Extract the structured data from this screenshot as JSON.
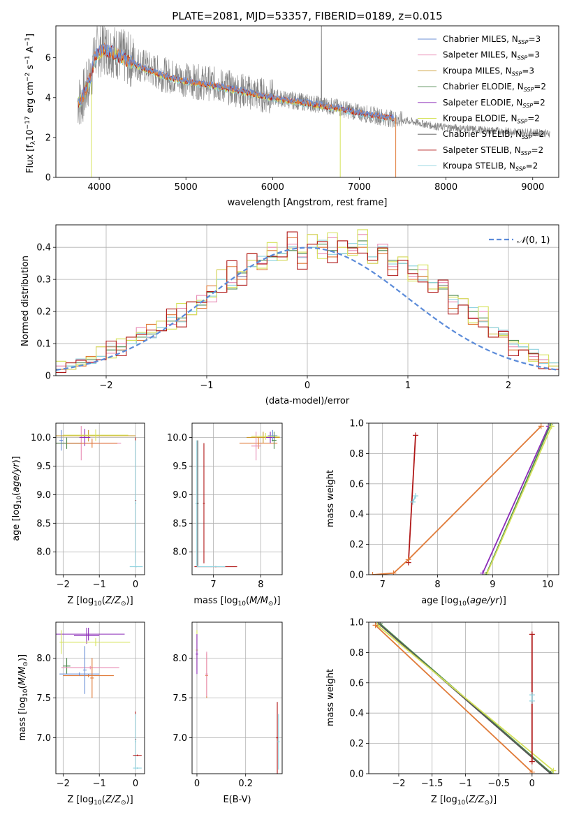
{
  "figure_title": "PLATE=2081, MJD=53357, FIBERID=0189, z=0.015",
  "colors": {
    "Chabrier MILES": "#6b8fd6",
    "Salpeter MILES": "#e88bb4",
    "Kroupa MILES": "#c9972a",
    "Chabrier ELODIE": "#4f8a4f",
    "Salpeter ELODIE": "#8b2bb8",
    "Kroupa ELODIE": "#d5e25a",
    "Chabrier STELIB": "#555555",
    "Salpeter STELIB": "#b01818",
    "Kroupa STELIB": "#8fd3df",
    "data": "#808080",
    "normal": "#5b8bd9",
    "orange_model": "#e07b39"
  },
  "chart_data": [
    {
      "id": "spectrum",
      "type": "line",
      "xlabel": "wavelength [Angstrom, rest frame]",
      "ylabel": "Flux [f_λ10^-17 erg cm^-2 s^-1 A^-1]",
      "xlim": [
        3500,
        9300
      ],
      "ylim": [
        0,
        7.6
      ],
      "xticks": [
        4000,
        5000,
        6000,
        7000,
        8000,
        9000
      ],
      "yticks": [
        0,
        2,
        4,
        6
      ],
      "grid": false,
      "legend_position": "top-right",
      "legend": [
        "Chabrier MILES, N_SSP=3",
        "Salpeter MILES, N_SSP=3",
        "Kroupa MILES, N_SSP=3",
        "Chabrier ELODIE, N_SSP=2",
        "Salpeter ELODIE, N_SSP=2",
        "Kroupa ELODIE, N_SSP=2",
        "Chabrier STELIB, N_SSP=2",
        "Salpeter STELIB, N_SSP=2",
        "Kroupa STELIB, N_SSP=2"
      ],
      "legend_labels": [
        {
          "name": "Chabrier MILES",
          "n": "3"
        },
        {
          "name": "Salpeter MILES",
          "n": "3"
        },
        {
          "name": "Kroupa MILES",
          "n": "3"
        },
        {
          "name": "Chabrier ELODIE",
          "n": "2"
        },
        {
          "name": "Salpeter ELODIE",
          "n": "2"
        },
        {
          "name": "Kroupa ELODIE",
          "n": "2"
        },
        {
          "name": "Chabrier STELIB",
          "n": "2"
        },
        {
          "name": "Salpeter STELIB",
          "n": "2"
        },
        {
          "name": "Kroupa STELIB",
          "n": "2"
        }
      ],
      "data_continuum": [
        [
          3750,
          3.8
        ],
        [
          3800,
          3.9
        ],
        [
          3900,
          5.0
        ],
        [
          3950,
          6.2
        ],
        [
          4050,
          6.5
        ],
        [
          4150,
          6.4
        ],
        [
          4300,
          6.0
        ],
        [
          4500,
          5.6
        ],
        [
          4700,
          5.2
        ],
        [
          4900,
          5.0
        ],
        [
          5100,
          4.8
        ],
        [
          5300,
          4.7
        ],
        [
          5500,
          4.5
        ],
        [
          5800,
          4.2
        ],
        [
          6100,
          3.95
        ],
        [
          6400,
          3.75
        ],
        [
          6700,
          3.55
        ],
        [
          7000,
          3.25
        ],
        [
          7300,
          3.0
        ],
        [
          7600,
          2.8
        ],
        [
          7900,
          2.55
        ],
        [
          8200,
          2.45
        ],
        [
          8500,
          2.35
        ],
        [
          8800,
          2.3
        ],
        [
          9200,
          2.2
        ]
      ],
      "model_continuum": [
        [
          3750,
          3.8
        ],
        [
          3800,
          3.9
        ],
        [
          3900,
          5.0
        ],
        [
          3950,
          6.0
        ],
        [
          4050,
          6.4
        ],
        [
          4150,
          6.3
        ],
        [
          4300,
          5.9
        ],
        [
          4500,
          5.5
        ],
        [
          4700,
          5.15
        ],
        [
          4900,
          4.9
        ],
        [
          5100,
          4.75
        ],
        [
          5300,
          4.6
        ],
        [
          5500,
          4.45
        ],
        [
          5800,
          4.15
        ],
        [
          6100,
          3.9
        ],
        [
          6400,
          3.7
        ],
        [
          6700,
          3.5
        ],
        [
          7000,
          3.2
        ],
        [
          7300,
          3.0
        ],
        [
          7420,
          2.95
        ]
      ]
    },
    {
      "id": "residuals",
      "type": "histogram",
      "xlabel": "(data-model)/error",
      "ylabel": "Normed distribution",
      "xlim": [
        -2.5,
        2.5
      ],
      "ylim": [
        0,
        0.47
      ],
      "xticks": [
        -2,
        -1,
        0,
        1,
        2
      ],
      "yticks": [
        0.0,
        0.1,
        0.2,
        0.3,
        0.4
      ],
      "grid": true,
      "legend_position": "top-right",
      "legend": [
        "N(0,1)"
      ],
      "bin_width": 0.1,
      "bin_start": -2.5,
      "series_values": [
        [
          0.02,
          0.03,
          0.04,
          0.05,
          0.06,
          0.08,
          0.09,
          0.1,
          0.12,
          0.13,
          0.15,
          0.17,
          0.18,
          0.2,
          0.22,
          0.26,
          0.3,
          0.27,
          0.32,
          0.34,
          0.36,
          0.37,
          0.38,
          0.39,
          0.38,
          0.4,
          0.41,
          0.39,
          0.38,
          0.4,
          0.42,
          0.37,
          0.39,
          0.36,
          0.35,
          0.33,
          0.31,
          0.29,
          0.27,
          0.25,
          0.22,
          0.2,
          0.18,
          0.15,
          0.13,
          0.11,
          0.09,
          0.07,
          0.05,
          0.04
        ],
        [
          0.03,
          0.02,
          0.05,
          0.04,
          0.09,
          0.07,
          0.1,
          0.11,
          0.15,
          0.12,
          0.17,
          0.16,
          0.21,
          0.19,
          0.25,
          0.23,
          0.33,
          0.29,
          0.31,
          0.36,
          0.35,
          0.4,
          0.36,
          0.41,
          0.37,
          0.44,
          0.38,
          0.43,
          0.4,
          0.39,
          0.44,
          0.35,
          0.41,
          0.34,
          0.37,
          0.31,
          0.33,
          0.27,
          0.29,
          0.23,
          0.24,
          0.18,
          0.2,
          0.13,
          0.14,
          0.09,
          0.1,
          0.06,
          0.05,
          0.03
        ],
        [
          0.02,
          0.04,
          0.03,
          0.06,
          0.05,
          0.09,
          0.08,
          0.12,
          0.11,
          0.16,
          0.14,
          0.19,
          0.17,
          0.23,
          0.21,
          0.28,
          0.26,
          0.34,
          0.3,
          0.38,
          0.33,
          0.39,
          0.37,
          0.43,
          0.35,
          0.41,
          0.4,
          0.37,
          0.42,
          0.38,
          0.4,
          0.36,
          0.38,
          0.33,
          0.36,
          0.3,
          0.31,
          0.26,
          0.28,
          0.21,
          0.22,
          0.16,
          0.17,
          0.12,
          0.12,
          0.08,
          0.08,
          0.05,
          0.04,
          0.02
        ]
      ],
      "series_colors": [
        "#4f8a4f",
        "#e88bb4",
        "#e07b39",
        "#8fd3df",
        "#d5e25a",
        "#b01818"
      ],
      "normal_curve": {
        "mean": 0,
        "sigma": 1
      }
    },
    {
      "id": "age_vs_Z",
      "type": "errorbar",
      "xlabel": "Z [log10(Z/Z_sun)]",
      "ylabel": "age [log10(age/yr)]",
      "xlim": [
        -2.2,
        0.25
      ],
      "ylim": [
        7.6,
        10.25
      ],
      "xticks": [
        -2,
        -1,
        0
      ],
      "yticks": [
        8.0,
        8.5,
        9.0,
        9.5,
        10.0
      ],
      "grid": true
    },
    {
      "id": "age_vs_mass",
      "type": "errorbar",
      "xlabel": "mass [log10(M/M_sun)]",
      "xlim": [
        6.55,
        8.45
      ],
      "ylim": [
        7.6,
        10.25
      ],
      "xticks": [
        7,
        8
      ],
      "yticks": [
        8.0,
        8.5,
        9.0,
        9.5,
        10.0
      ],
      "grid": true
    },
    {
      "id": "mass_weight_vs_age",
      "type": "line",
      "xlabel": "age [log10(age/yr)]",
      "ylabel": "mass weight",
      "xlim": [
        6.75,
        10.2
      ],
      "ylim": [
        0,
        1
      ],
      "xticks": [
        7,
        8,
        9,
        10
      ],
      "yticks": [
        0.0,
        0.2,
        0.4,
        0.6,
        0.8,
        1.0
      ],
      "grid": true
    },
    {
      "id": "mass_vs_Z",
      "type": "errorbar",
      "xlabel": "Z [log10(Z/Z_sun)]",
      "ylabel": "mass [log10(M/M_sun)]",
      "xlim": [
        -2.2,
        0.25
      ],
      "ylim": [
        6.55,
        8.45
      ],
      "xticks": [
        -2,
        -1,
        0
      ],
      "yticks": [
        7.0,
        7.5,
        8.0
      ],
      "grid": true
    },
    {
      "id": "mass_vs_EBV",
      "type": "errorbar",
      "xlabel": "E(B-V)",
      "xlim": [
        -0.02,
        0.35
      ],
      "ylim": [
        6.55,
        8.45
      ],
      "xticks": [
        0.0,
        0.2
      ],
      "yticks": [
        7.0,
        7.5,
        8.0
      ],
      "grid": true
    },
    {
      "id": "mass_weight_vs_Z",
      "type": "line",
      "xlabel": "Z [log10(Z/Z_sun)]",
      "ylabel": "mass weight",
      "xlim": [
        -2.45,
        0.4
      ],
      "ylim": [
        0,
        1
      ],
      "xticks": [
        -2.0,
        -1.5,
        -1.0,
        -0.5,
        0.0
      ],
      "yticks": [
        0.0,
        0.2,
        0.4,
        0.6,
        0.8,
        1.0
      ],
      "grid": true
    }
  ],
  "errorbars": {
    "age_vs_Z": [
      {
        "x": -2.05,
        "y": 9.95,
        "xerr": 0.05,
        "yerr": 0.18,
        "c": "#6b8fd6"
      },
      {
        "x": -1.5,
        "y": 9.9,
        "xerr": 1.1,
        "yerr": 0.3,
        "c": "#e88bb4"
      },
      {
        "x": -1.3,
        "y": 10.03,
        "xerr": 1.3,
        "yerr": 0.1,
        "c": "#c9972a"
      },
      {
        "x": -1.9,
        "y": 9.9,
        "xerr": 0.4,
        "yerr": 0.1,
        "c": "#4f8a4f"
      },
      {
        "x": -1.4,
        "y": 10.0,
        "xerr": 0.15,
        "yerr": 0.15,
        "c": "#8b2bb8"
      },
      {
        "x": -1.1,
        "y": 10.04,
        "xerr": 0.9,
        "yerr": 0.1,
        "c": "#d5e25a"
      },
      {
        "x": -1.2,
        "y": 9.9,
        "xerr": 0.7,
        "yerr": 0.08,
        "c": "#e07b39"
      },
      {
        "x": 0.0,
        "y": 8.9,
        "xerr": 0.02,
        "yerr": 1.1,
        "c": "#b01818"
      },
      {
        "x": 0.0,
        "y": 8.85,
        "xerr": 0.02,
        "yerr": 1.1,
        "c": "#8fd3df"
      },
      {
        "x": 0.02,
        "y": 7.74,
        "xerr": 0.18,
        "yerr": 0.01,
        "c": "#8fd3df"
      }
    ],
    "age_vs_mass": [
      {
        "x": 8.05,
        "y": 10.0,
        "xerr": 0.35,
        "yerr": 0.1,
        "c": "#c9972a"
      },
      {
        "x": 7.95,
        "y": 9.9,
        "xerr": 0.4,
        "yerr": 0.1,
        "c": "#e07b39"
      },
      {
        "x": 7.9,
        "y": 9.85,
        "xerr": 0.1,
        "yerr": 0.25,
        "c": "#e88bb4"
      },
      {
        "x": 8.2,
        "y": 10.0,
        "xerr": 0.1,
        "yerr": 0.1,
        "c": "#8b2bb8"
      },
      {
        "x": 8.25,
        "y": 10.03,
        "xerr": 0.1,
        "yerr": 0.1,
        "c": "#6b8fd6"
      },
      {
        "x": 8.1,
        "y": 10.02,
        "xerr": 0.3,
        "yerr": 0.06,
        "c": "#d5e25a"
      },
      {
        "x": 8.28,
        "y": 9.95,
        "xerr": 0.05,
        "yerr": 0.15,
        "c": "#4f8a4f"
      },
      {
        "x": 6.65,
        "y": 8.85,
        "xerr": 0.03,
        "yerr": 1.1,
        "c": "#8fd3df"
      },
      {
        "x": 6.67,
        "y": 8.85,
        "xerr": 0.02,
        "yerr": 1.1,
        "c": "#555555"
      },
      {
        "x": 6.8,
        "y": 8.85,
        "xerr": 0.02,
        "yerr": 1.05,
        "c": "#b01818"
      },
      {
        "x": 7.05,
        "y": 7.74,
        "xerr": 0.45,
        "yerr": 0.01,
        "c": "#b01818"
      },
      {
        "x": 6.95,
        "y": 7.74,
        "xerr": 0.3,
        "yerr": 0.01,
        "c": "#8fd3df"
      }
    ],
    "mass_vs_Z": [
      {
        "x": -1.3,
        "y": 8.3,
        "xerr": 1.0,
        "yerr": 0.08,
        "c": "#8b2bb8"
      },
      {
        "x": -1.35,
        "y": 8.28,
        "xerr": 0.35,
        "yerr": 0.1,
        "c": "#8b2bb8"
      },
      {
        "x": -1.1,
        "y": 8.2,
        "xerr": 0.95,
        "yerr": 0.05,
        "c": "#d5e25a"
      },
      {
        "x": -2.05,
        "y": 8.2,
        "xerr": 0.05,
        "yerr": 0.15,
        "c": "#d5e25a"
      },
      {
        "x": -1.9,
        "y": 7.9,
        "xerr": 0.1,
        "yerr": 0.1,
        "c": "#4f8a4f"
      },
      {
        "x": -1.25,
        "y": 7.88,
        "xerr": 0.8,
        "yerr": 0.02,
        "c": "#e88bb4"
      },
      {
        "x": -1.3,
        "y": 7.78,
        "xerr": 0.7,
        "yerr": 0.02,
        "c": "#e07b39"
      },
      {
        "x": -1.55,
        "y": 7.8,
        "xerr": 0.55,
        "yerr": 0.02,
        "c": "#6b8fd6"
      },
      {
        "x": -1.2,
        "y": 7.75,
        "xerr": 0.05,
        "yerr": 0.25,
        "c": "#e07b39"
      },
      {
        "x": -1.4,
        "y": 7.85,
        "xerr": 0.05,
        "yerr": 0.3,
        "c": "#6b8fd6"
      },
      {
        "x": 0.0,
        "y": 6.98,
        "xerr": 0.02,
        "yerr": 0.35,
        "c": "#b01818"
      },
      {
        "x": 0.0,
        "y": 6.95,
        "xerr": 0.02,
        "yerr": 0.35,
        "c": "#8fd3df"
      },
      {
        "x": 0.05,
        "y": 6.78,
        "xerr": 0.12,
        "yerr": 0.01,
        "c": "#b01818"
      },
      {
        "x": 0.05,
        "y": 6.62,
        "xerr": 0.12,
        "yerr": 0.01,
        "c": "#8fd3df"
      }
    ],
    "mass_vs_EBV": [
      {
        "x": 0.0,
        "y": 8.1,
        "xerr": 0.005,
        "yerr": 0.25,
        "c": "#d5e25a"
      },
      {
        "x": 0.0,
        "y": 8.05,
        "xerr": 0.005,
        "yerr": 0.25,
        "c": "#8b2bb8"
      },
      {
        "x": 0.04,
        "y": 7.78,
        "xerr": 0.005,
        "yerr": 0.28,
        "c": "#e07b39"
      },
      {
        "x": 0.04,
        "y": 7.8,
        "xerr": 0.005,
        "yerr": 0.28,
        "c": "#e88bb4"
      },
      {
        "x": 0.33,
        "y": 7.0,
        "xerr": 0.005,
        "yerr": 0.45,
        "c": "#b01818"
      },
      {
        "x": 0.335,
        "y": 6.95,
        "xerr": 0.005,
        "yerr": 0.35,
        "c": "#8fd3df"
      }
    ]
  },
  "weight_lines": {
    "mass_weight_vs_age": [
      {
        "c": "#b01818",
        "pts": [
          [
            7.47,
            0.08
          ],
          [
            7.6,
            0.92
          ]
        ]
      },
      {
        "c": "#e07b39",
        "pts": [
          [
            6.82,
            0.0
          ],
          [
            7.2,
            0.01
          ],
          [
            7.47,
            0.1
          ],
          [
            9.88,
            0.98
          ]
        ]
      },
      {
        "c": "#8b2bb8",
        "pts": [
          [
            8.82,
            0.01
          ],
          [
            10.02,
            0.98
          ]
        ]
      },
      {
        "c": "#4f8a4f",
        "pts": [
          [
            8.88,
            0.0
          ],
          [
            10.05,
            0.99
          ]
        ]
      },
      {
        "c": "#d5e25a",
        "pts": [
          [
            8.9,
            0.01
          ],
          [
            10.07,
            0.98
          ]
        ]
      },
      {
        "c": "#8fd3df",
        "pts": [
          [
            7.55,
            0.48
          ],
          [
            7.6,
            0.52
          ]
        ]
      }
    ],
    "mass_weight_vs_Z": [
      {
        "c": "#4f8a4f",
        "pts": [
          [
            -2.28,
            0.99
          ],
          [
            0.3,
            0.0
          ]
        ]
      },
      {
        "c": "#555555",
        "pts": [
          [
            -2.3,
            0.99
          ],
          [
            0.28,
            0.0
          ]
        ]
      },
      {
        "c": "#d5e25a",
        "pts": [
          [
            -2.32,
            0.98
          ],
          [
            0.32,
            0.02
          ]
        ]
      },
      {
        "c": "#e07b39",
        "pts": [
          [
            -2.35,
            0.98
          ],
          [
            0.0,
            0.01
          ]
        ]
      },
      {
        "c": "#b01818",
        "pts": [
          [
            0.0,
            0.08
          ],
          [
            0.0,
            0.92
          ]
        ]
      },
      {
        "c": "#8fd3df",
        "pts": [
          [
            0.0,
            0.48
          ],
          [
            0.0,
            0.52
          ]
        ]
      }
    ]
  }
}
